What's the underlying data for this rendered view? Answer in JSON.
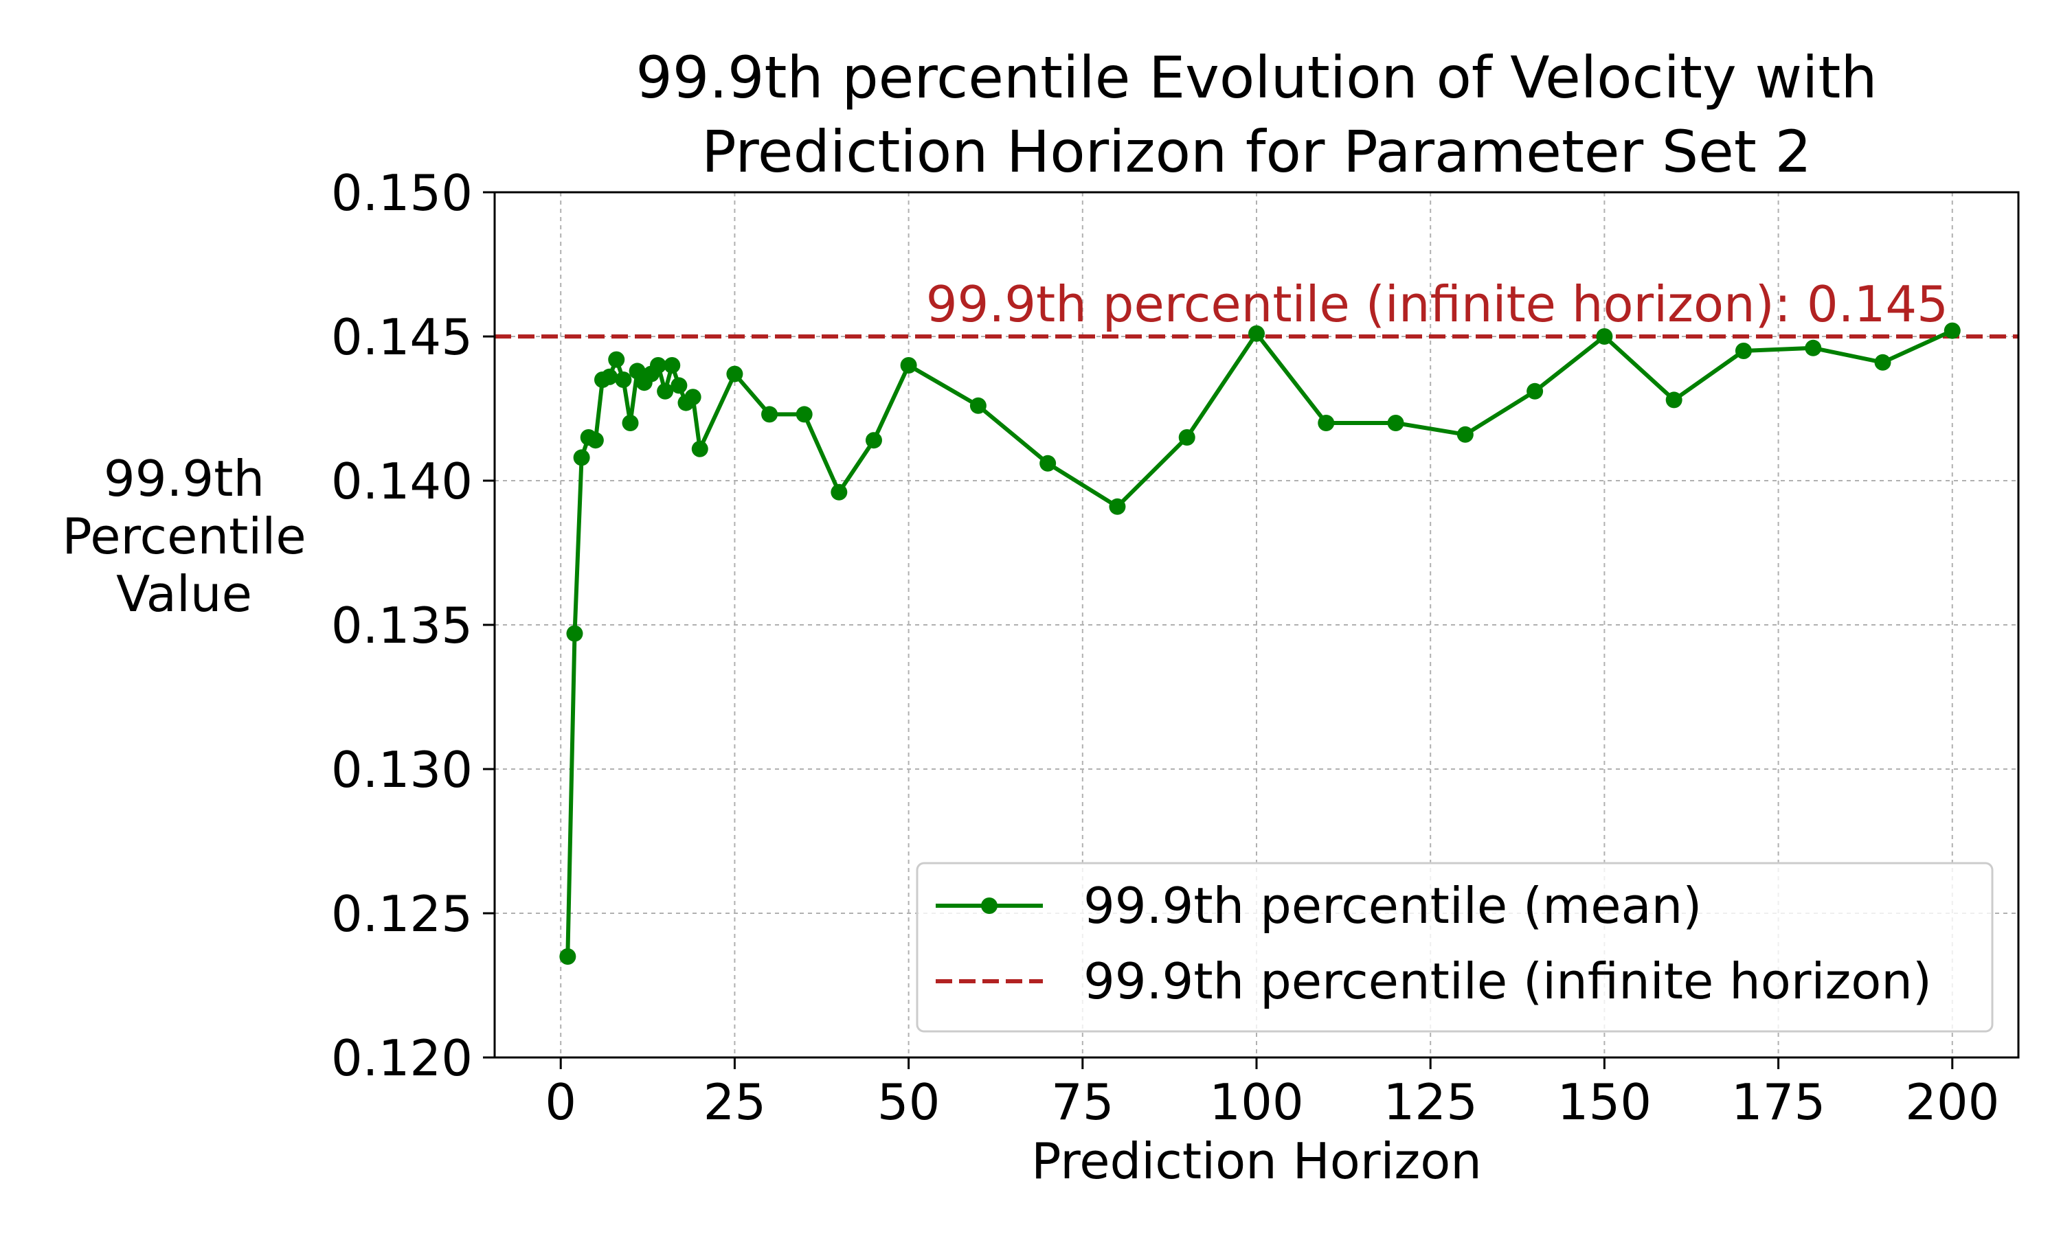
{
  "chart_data": {
    "type": "line",
    "title_line1": "99.9th percentile Evolution of Velocity with",
    "title_line2": "Prediction Horizon for Parameter Set 2",
    "xlabel": "Prediction Horizon",
    "ylabel_lines": [
      "99.9th",
      "Percentile",
      "Value"
    ],
    "xlim": [
      -9.5,
      209.5
    ],
    "ylim": [
      0.12,
      0.15
    ],
    "xticks": [
      0,
      25,
      50,
      75,
      100,
      125,
      150,
      175,
      200
    ],
    "yticks": [
      0.12,
      0.125,
      0.13,
      0.135,
      0.14,
      0.145,
      0.15
    ],
    "xtick_labels": [
      "0",
      "25",
      "50",
      "75",
      "100",
      "125",
      "150",
      "175",
      "200"
    ],
    "ytick_labels": [
      "0.120",
      "0.125",
      "0.130",
      "0.135",
      "0.140",
      "0.145",
      "0.150"
    ],
    "grid": true,
    "legend_position": "lower right",
    "series": [
      {
        "name": "99.9th percentile (mean)",
        "color": "#008000",
        "style": "solid-with-circle-markers",
        "x": [
          1,
          2,
          3,
          4,
          5,
          6,
          7,
          8,
          9,
          10,
          11,
          12,
          13,
          14,
          15,
          16,
          17,
          18,
          19,
          20,
          25,
          30,
          35,
          40,
          45,
          50,
          60,
          70,
          80,
          90,
          100,
          110,
          120,
          130,
          140,
          150,
          160,
          170,
          180,
          190,
          200
        ],
        "y": [
          0.1235,
          0.1347,
          0.1408,
          0.1415,
          0.1414,
          0.1435,
          0.1436,
          0.1442,
          0.1435,
          0.142,
          0.1438,
          0.1434,
          0.1437,
          0.144,
          0.1431,
          0.144,
          0.1433,
          0.1427,
          0.1429,
          0.1411,
          0.1437,
          0.1423,
          0.1423,
          0.1396,
          0.1414,
          0.144,
          0.1426,
          0.1406,
          0.1391,
          0.1415,
          0.1451,
          0.142,
          0.142,
          0.1416,
          0.1431,
          0.145,
          0.1428,
          0.1445,
          0.1446,
          0.1441,
          0.1452
        ]
      },
      {
        "name": "99.9th percentile (infinite horizon)",
        "color": "#b22222",
        "style": "dashed-horizontal",
        "y": 0.145
      }
    ],
    "annotation": "99.9th percentile (infinite horizon): 0.145"
  }
}
